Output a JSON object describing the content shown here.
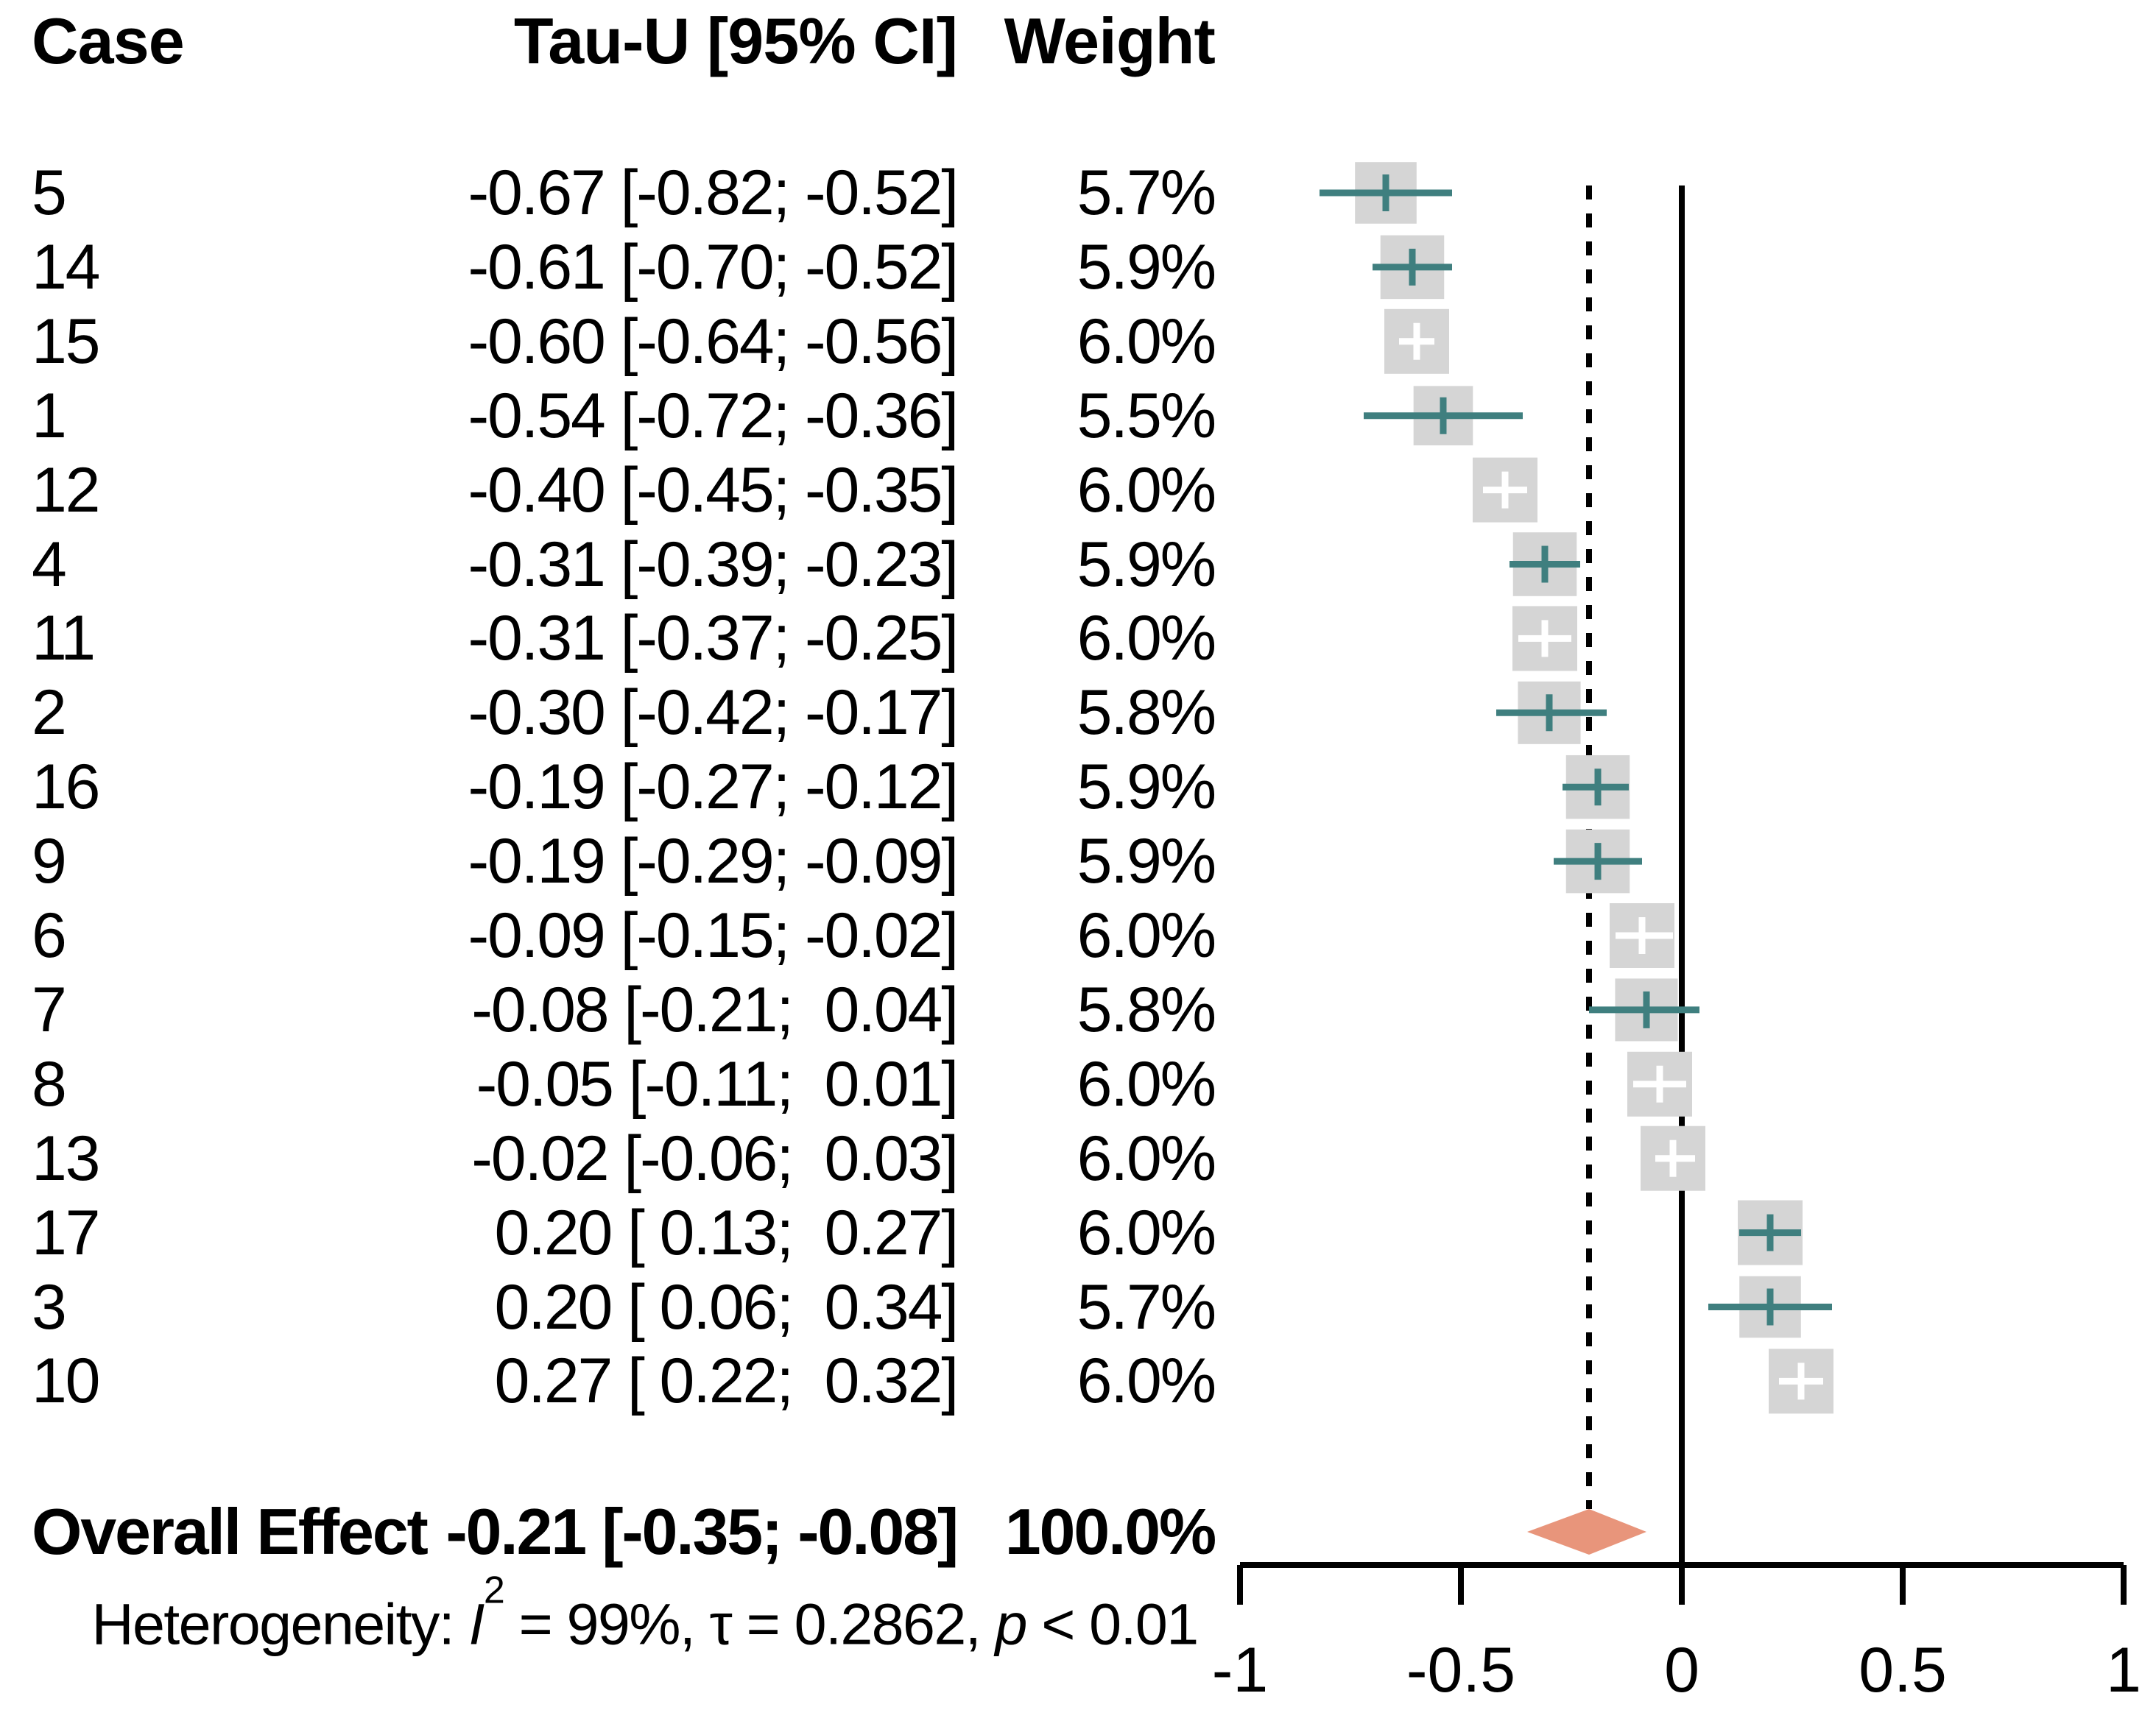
{
  "chart_data": {
    "type": "forest",
    "description": "Forest plot of Tau-U effect sizes per case with 95% confidence intervals, study weights, and pooled overall effect diamond",
    "columns": [
      "Case",
      "Tau-U [95% CI]",
      "Weight"
    ],
    "rows": [
      {
        "case": "5",
        "tau": -0.67,
        "lo": -0.82,
        "hi": -0.52,
        "weight": 5.7,
        "value_label": "-0.67 [-0.82; -0.52]",
        "weight_label": "5.7%",
        "ci_style": "teal"
      },
      {
        "case": "14",
        "tau": -0.61,
        "lo": -0.7,
        "hi": -0.52,
        "weight": 5.9,
        "value_label": "-0.61 [-0.70; -0.52]",
        "weight_label": "5.9%",
        "ci_style": "teal"
      },
      {
        "case": "15",
        "tau": -0.6,
        "lo": -0.64,
        "hi": -0.56,
        "weight": 6.0,
        "value_label": "-0.60 [-0.64; -0.56]",
        "weight_label": "6.0%",
        "ci_style": "white"
      },
      {
        "case": "1",
        "tau": -0.54,
        "lo": -0.72,
        "hi": -0.36,
        "weight": 5.5,
        "value_label": "-0.54 [-0.72; -0.36]",
        "weight_label": "5.5%",
        "ci_style": "teal"
      },
      {
        "case": "12",
        "tau": -0.4,
        "lo": -0.45,
        "hi": -0.35,
        "weight": 6.0,
        "value_label": "-0.40 [-0.45; -0.35]",
        "weight_label": "6.0%",
        "ci_style": "white"
      },
      {
        "case": "4",
        "tau": -0.31,
        "lo": -0.39,
        "hi": -0.23,
        "weight": 5.9,
        "value_label": "-0.31 [-0.39; -0.23]",
        "weight_label": "5.9%",
        "ci_style": "teal"
      },
      {
        "case": "11",
        "tau": -0.31,
        "lo": -0.37,
        "hi": -0.25,
        "weight": 6.0,
        "value_label": "-0.31 [-0.37; -0.25]",
        "weight_label": "6.0%",
        "ci_style": "white"
      },
      {
        "case": "2",
        "tau": -0.3,
        "lo": -0.42,
        "hi": -0.17,
        "weight": 5.8,
        "value_label": "-0.30 [-0.42; -0.17]",
        "weight_label": "5.8%",
        "ci_style": "teal"
      },
      {
        "case": "16",
        "tau": -0.19,
        "lo": -0.27,
        "hi": -0.12,
        "weight": 5.9,
        "value_label": "-0.19 [-0.27; -0.12]",
        "weight_label": "5.9%",
        "ci_style": "teal"
      },
      {
        "case": "9",
        "tau": -0.19,
        "lo": -0.29,
        "hi": -0.09,
        "weight": 5.9,
        "value_label": "-0.19 [-0.29; -0.09]",
        "weight_label": "5.9%",
        "ci_style": "teal"
      },
      {
        "case": "6",
        "tau": -0.09,
        "lo": -0.15,
        "hi": -0.02,
        "weight": 6.0,
        "value_label": "-0.09 [-0.15; -0.02]",
        "weight_label": "6.0%",
        "ci_style": "white"
      },
      {
        "case": "7",
        "tau": -0.08,
        "lo": -0.21,
        "hi": 0.04,
        "weight": 5.8,
        "value_label": "-0.08 [-0.21;  0.04]",
        "weight_label": "5.8%",
        "ci_style": "teal"
      },
      {
        "case": "8",
        "tau": -0.05,
        "lo": -0.11,
        "hi": 0.01,
        "weight": 6.0,
        "value_label": "-0.05 [-0.11;  0.01]",
        "weight_label": "6.0%",
        "ci_style": "white"
      },
      {
        "case": "13",
        "tau": -0.02,
        "lo": -0.06,
        "hi": 0.03,
        "weight": 6.0,
        "value_label": "-0.02 [-0.06;  0.03]",
        "weight_label": "6.0%",
        "ci_style": "white"
      },
      {
        "case": "17",
        "tau": 0.2,
        "lo": 0.13,
        "hi": 0.27,
        "weight": 6.0,
        "value_label": " 0.20 [ 0.13;  0.27]",
        "weight_label": "6.0%",
        "ci_style": "teal"
      },
      {
        "case": "3",
        "tau": 0.2,
        "lo": 0.06,
        "hi": 0.34,
        "weight": 5.7,
        "value_label": " 0.20 [ 0.06;  0.34]",
        "weight_label": "5.7%",
        "ci_style": "teal"
      },
      {
        "case": "10",
        "tau": 0.27,
        "lo": 0.22,
        "hi": 0.32,
        "weight": 6.0,
        "value_label": " 0.27 [ 0.22;  0.32]",
        "weight_label": "6.0%",
        "ci_style": "white"
      }
    ],
    "overall": {
      "label": "Overall Effect",
      "tau": -0.21,
      "lo": -0.35,
      "hi": -0.08,
      "value_label": "-0.21 [-0.35; -0.08]",
      "weight_label": "100.0%"
    },
    "heterogeneity": {
      "text": "Heterogeneity: I² = 99%, τ = 0.2862, p < 0.01",
      "prefix": "Heterogeneity: ",
      "i_stat": "I",
      "i_sup": "2",
      "i_rest": " = 99%, τ = 0.2862, ",
      "p_stat": "p",
      "p_rest": " < 0.01"
    },
    "x_axis": {
      "min": -1,
      "max": 1,
      "ticks": [
        -1,
        -0.5,
        0,
        0.5,
        1
      ],
      "tick_labels": [
        "-1",
        "-0.5",
        "0",
        "0.5",
        "1"
      ]
    },
    "reference_line": 0,
    "dashed_line_at": -0.21,
    "colors": {
      "square": "#d5d5d5",
      "ci": "#3f7f7f",
      "ci_inside": "#ffffff",
      "diamond": "#e8957b",
      "line": "#000000",
      "text": "#000000"
    },
    "legend_position": "none",
    "grid": false
  }
}
